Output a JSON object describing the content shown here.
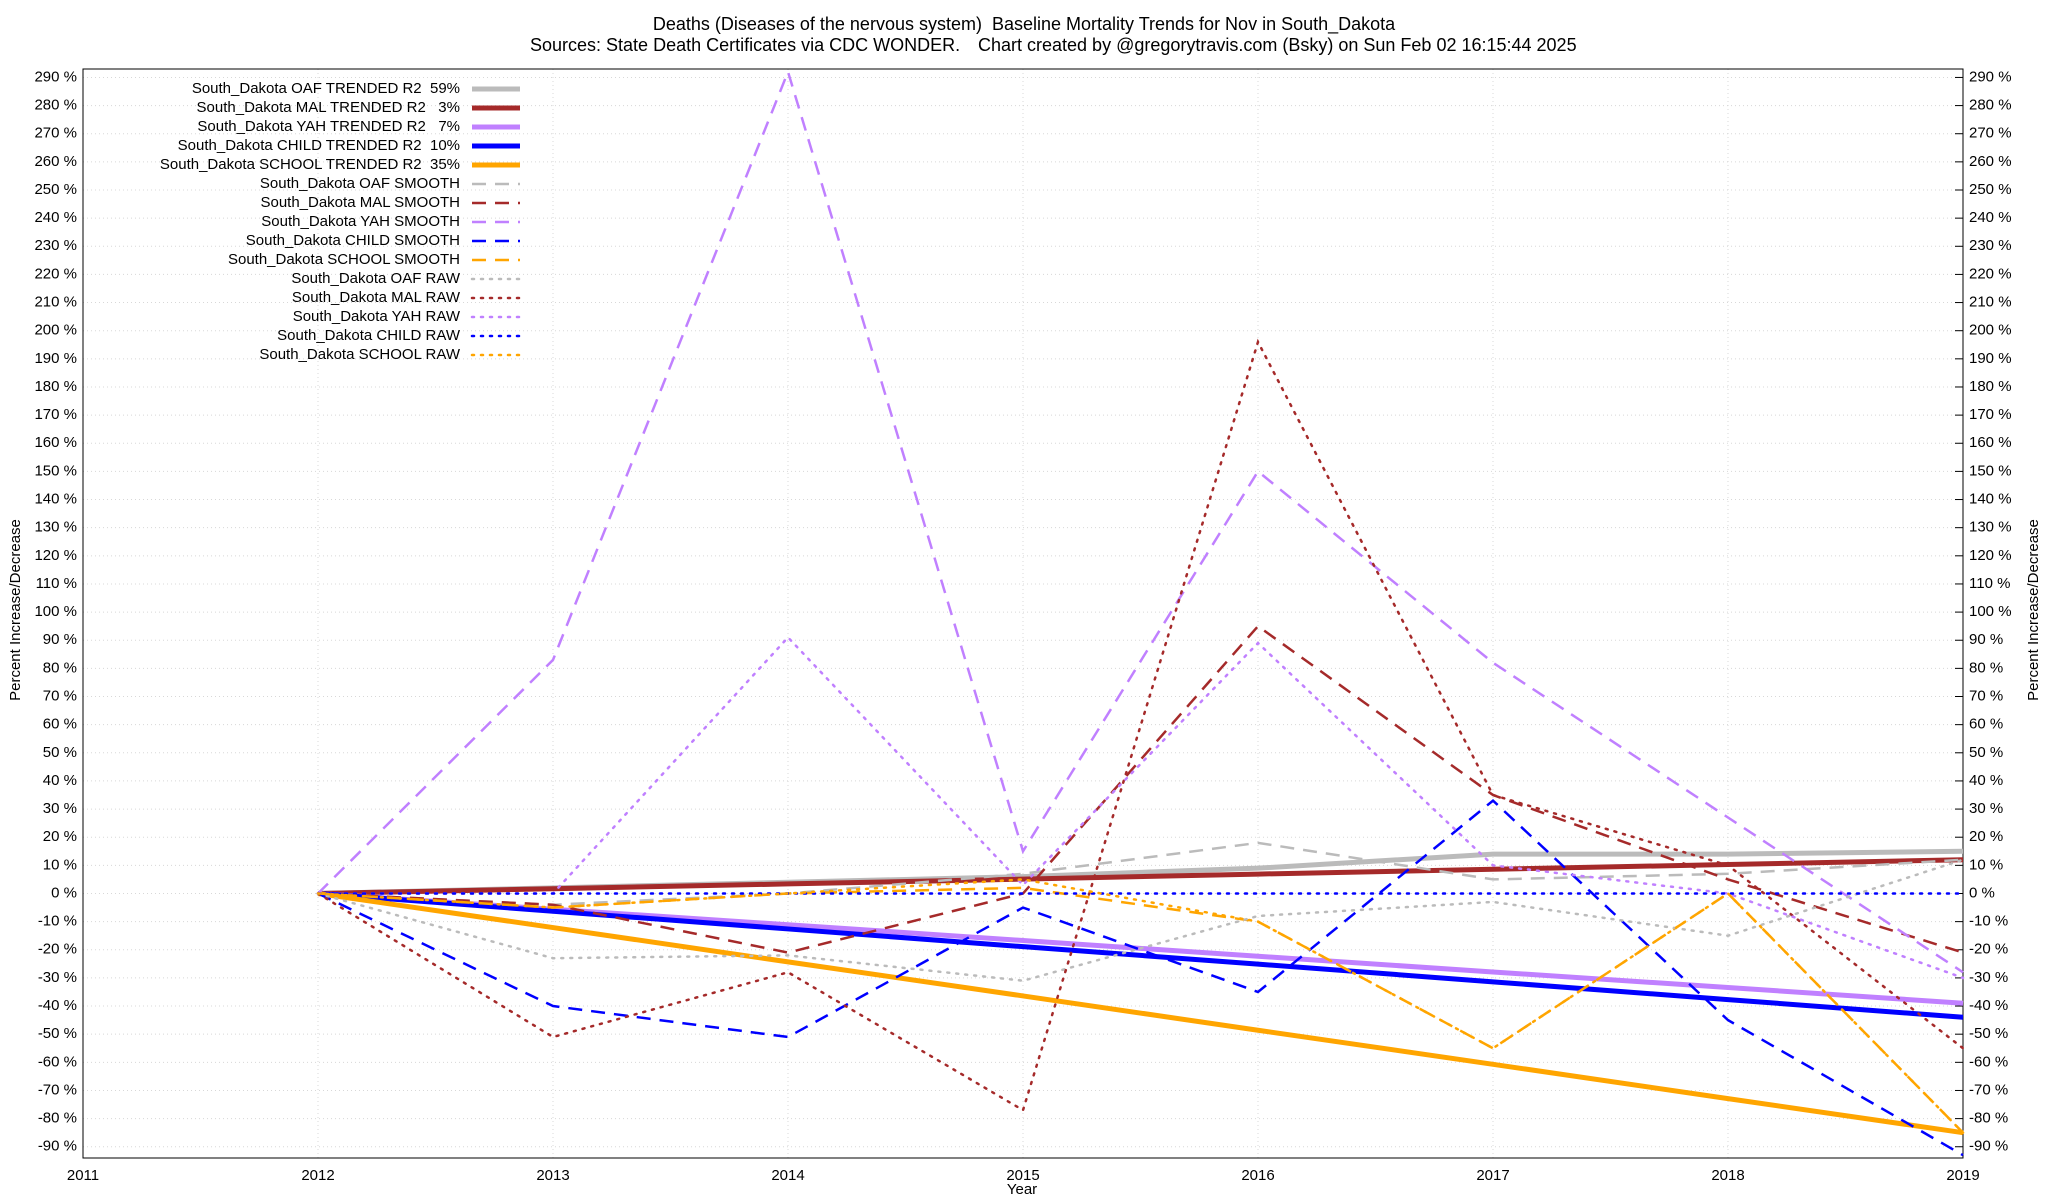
{
  "chart_data": {
    "type": "line",
    "title": "Deaths (Diseases of the nervous system)  Baseline Mortality Trends for Nov in South_Dakota",
    "subtitle": "Sources: State Death Certificates via CDC WONDER.",
    "credit": "Chart created by @gregorytravis.com (Bsky) on Sun Feb 02 16:15:44 2025",
    "x_label": "Year",
    "y_label": "Percent Increase/Decrease",
    "y2_label": "Percent Increase/Decrease",
    "grid": true,
    "legend": "top-left",
    "x": [
      2012,
      2013,
      2014,
      2015,
      2016,
      2017,
      2018,
      2019
    ],
    "xlim": [
      2011,
      2019
    ],
    "xticks": [
      2011,
      2012,
      2013,
      2014,
      2015,
      2016,
      2017,
      2018,
      2019
    ],
    "ylim": [
      -94,
      293
    ],
    "yticks": [
      {
        "value": -90,
        "label": "-90 %"
      },
      {
        "value": -80,
        "label": "-80 %"
      },
      {
        "value": -70,
        "label": "-70 %"
      },
      {
        "value": -60,
        "label": "-60 %"
      },
      {
        "value": -50,
        "label": "-50 %"
      },
      {
        "value": -40,
        "label": "-40 %"
      },
      {
        "value": -30,
        "label": "-30 %"
      },
      {
        "value": -20,
        "label": "-20 %"
      },
      {
        "value": -10,
        "label": "-10 %"
      },
      {
        "value": 0,
        "label": "0 %"
      },
      {
        "value": 10,
        "label": "10 %"
      },
      {
        "value": 20,
        "label": "20 %"
      },
      {
        "value": 30,
        "label": "30 %"
      },
      {
        "value": 40,
        "label": "40 %"
      },
      {
        "value": 50,
        "label": "50 %"
      },
      {
        "value": 60,
        "label": "60 %"
      },
      {
        "value": 70,
        "label": "70 %"
      },
      {
        "value": 80,
        "label": "80 %"
      },
      {
        "value": 90,
        "label": "90 %"
      },
      {
        "value": 100,
        "label": "100 %"
      },
      {
        "value": 110,
        "label": "110 %"
      },
      {
        "value": 120,
        "label": "120 %"
      },
      {
        "value": 130,
        "label": "130 %"
      },
      {
        "value": 140,
        "label": "140 %"
      },
      {
        "value": 150,
        "label": "150 %"
      },
      {
        "value": 160,
        "label": "160 %"
      },
      {
        "value": 170,
        "label": "170 %"
      },
      {
        "value": 180,
        "label": "180 %"
      },
      {
        "value": 190,
        "label": "190 %"
      },
      {
        "value": 200,
        "label": "200 %"
      },
      {
        "value": 210,
        "label": "210 %"
      },
      {
        "value": 220,
        "label": "220 %"
      },
      {
        "value": 230,
        "label": "230 %"
      },
      {
        "value": 240,
        "label": "240 %"
      },
      {
        "value": 250,
        "label": "250 %"
      },
      {
        "value": 260,
        "label": "260 %"
      },
      {
        "value": 270,
        "label": "270 %"
      },
      {
        "value": 280,
        "label": "280 %"
      },
      {
        "value": 290,
        "label": "290 %"
      }
    ],
    "y2lim": [
      -94,
      293
    ],
    "y2ticks": [
      {
        "value": -90,
        "label": "-90 %"
      },
      {
        "value": -80,
        "label": "-80 %"
      },
      {
        "value": -70,
        "label": "-70 %"
      },
      {
        "value": -60,
        "label": "-60 %"
      },
      {
        "value": -50,
        "label": "-50 %"
      },
      {
        "value": -40,
        "label": "-40 %"
      },
      {
        "value": -30,
        "label": "-30 %"
      },
      {
        "value": -20,
        "label": "-20 %"
      },
      {
        "value": -10,
        "label": "-10 %"
      },
      {
        "value": 0,
        "label": "0 %"
      },
      {
        "value": 10,
        "label": "10 %"
      },
      {
        "value": 20,
        "label": "20 %"
      },
      {
        "value": 30,
        "label": "30 %"
      },
      {
        "value": 40,
        "label": "40 %"
      },
      {
        "value": 50,
        "label": "50 %"
      },
      {
        "value": 60,
        "label": "60 %"
      },
      {
        "value": 70,
        "label": "70 %"
      },
      {
        "value": 80,
        "label": "80 %"
      },
      {
        "value": 90,
        "label": "90 %"
      },
      {
        "value": 100,
        "label": "100 %"
      },
      {
        "value": 110,
        "label": "110 %"
      },
      {
        "value": 120,
        "label": "120 %"
      },
      {
        "value": 130,
        "label": "130 %"
      },
      {
        "value": 140,
        "label": "140 %"
      },
      {
        "value": 150,
        "label": "150 %"
      },
      {
        "value": 160,
        "label": "160 %"
      },
      {
        "value": 170,
        "label": "170 %"
      },
      {
        "value": 180,
        "label": "180 %"
      },
      {
        "value": 190,
        "label": "190 %"
      },
      {
        "value": 200,
        "label": "200 %"
      },
      {
        "value": 210,
        "label": "210 %"
      },
      {
        "value": 220,
        "label": "220 %"
      },
      {
        "value": 230,
        "label": "230 %"
      },
      {
        "value": 240,
        "label": "240 %"
      },
      {
        "value": 250,
        "label": "250 %"
      },
      {
        "value": 260,
        "label": "260 %"
      },
      {
        "value": 270,
        "label": "270 %"
      },
      {
        "value": 280,
        "label": "280 %"
      },
      {
        "value": 290,
        "label": "290 %"
      }
    ],
    "series": [
      {
        "name": "South_Dakota OAF TRENDED R2  59%",
        "color": "#bbbbbb",
        "dash": "solid",
        "values": [
          0,
          2,
          4,
          6,
          9,
          14,
          14,
          15
        ]
      },
      {
        "name": "South_Dakota MAL TRENDED R2   3%",
        "color": "#a52a2a",
        "dash": "solid",
        "values": [
          0,
          1.7,
          3.4,
          5.1,
          6.9,
          8.6,
          10.3,
          12
        ]
      },
      {
        "name": "South_Dakota YAH TRENDED R2   7%",
        "color": "#c080ff",
        "dash": "solid",
        "values": [
          0,
          -5.6,
          -11.1,
          -16.7,
          -22.3,
          -27.9,
          -33.4,
          -39
        ]
      },
      {
        "name": "South_Dakota CHILD TRENDED R2  10%",
        "color": "#0000ff",
        "dash": "solid",
        "values": [
          0,
          -6.3,
          -12.6,
          -18.9,
          -25.1,
          -31.4,
          -37.7,
          -44
        ]
      },
      {
        "name": "South_Dakota SCHOOL TRENDED R2  35%",
        "color": "#ffa500",
        "dash": "solid",
        "values": [
          0,
          -12.1,
          -24.3,
          -36.4,
          -48.6,
          -60.7,
          -72.9,
          -85
        ]
      },
      {
        "name": "South_Dakota OAF SMOOTH",
        "color": "#bbbbbb",
        "dash": "dashed",
        "values": [
          0,
          -4,
          0,
          7,
          18,
          5,
          7,
          12
        ]
      },
      {
        "name": "South_Dakota MAL SMOOTH",
        "color": "#a52a2a",
        "dash": "dashed",
        "values": [
          0,
          -4,
          -21,
          0,
          95,
          35,
          5,
          -21
        ]
      },
      {
        "name": "South_Dakota YAH SMOOTH",
        "color": "#c080ff",
        "dash": "dashed",
        "values": [
          0,
          83,
          292,
          15,
          150,
          82,
          27,
          -28
        ]
      },
      {
        "name": "South_Dakota CHILD SMOOTH",
        "color": "#0000ff",
        "dash": "dashed",
        "values": [
          0,
          -40,
          -51,
          -5,
          -35,
          33,
          -45,
          -93
        ]
      },
      {
        "name": "South_Dakota SCHOOL SMOOTH",
        "color": "#ffa500",
        "dash": "dashed",
        "values": [
          0,
          -5,
          0,
          2,
          -10,
          -55,
          0,
          -85
        ]
      },
      {
        "name": "South_Dakota OAF RAW",
        "color": "#bbbbbb",
        "dash": "dotted",
        "values": [
          0,
          -23,
          -22,
          -31,
          -8,
          -3,
          -15,
          12
        ]
      },
      {
        "name": "South_Dakota MAL RAW",
        "color": "#a52a2a",
        "dash": "dotted",
        "values": [
          0,
          -51,
          -28,
          -77,
          196,
          35,
          10,
          -55
        ]
      },
      {
        "name": "South_Dakota YAH RAW",
        "color": "#c080ff",
        "dash": "dotted",
        "values": [
          0,
          0,
          91,
          3,
          89,
          10,
          0,
          -30
        ]
      },
      {
        "name": "South_Dakota CHILD RAW",
        "color": "#0000ff",
        "dash": "dotted",
        "values": [
          0,
          0,
          0,
          0,
          0,
          0,
          0,
          0
        ]
      },
      {
        "name": "South_Dakota SCHOOL RAW",
        "color": "#ffa500",
        "dash": "dotted",
        "values": [
          0,
          -5,
          0,
          5,
          -10,
          -55,
          0,
          -85
        ]
      }
    ]
  }
}
